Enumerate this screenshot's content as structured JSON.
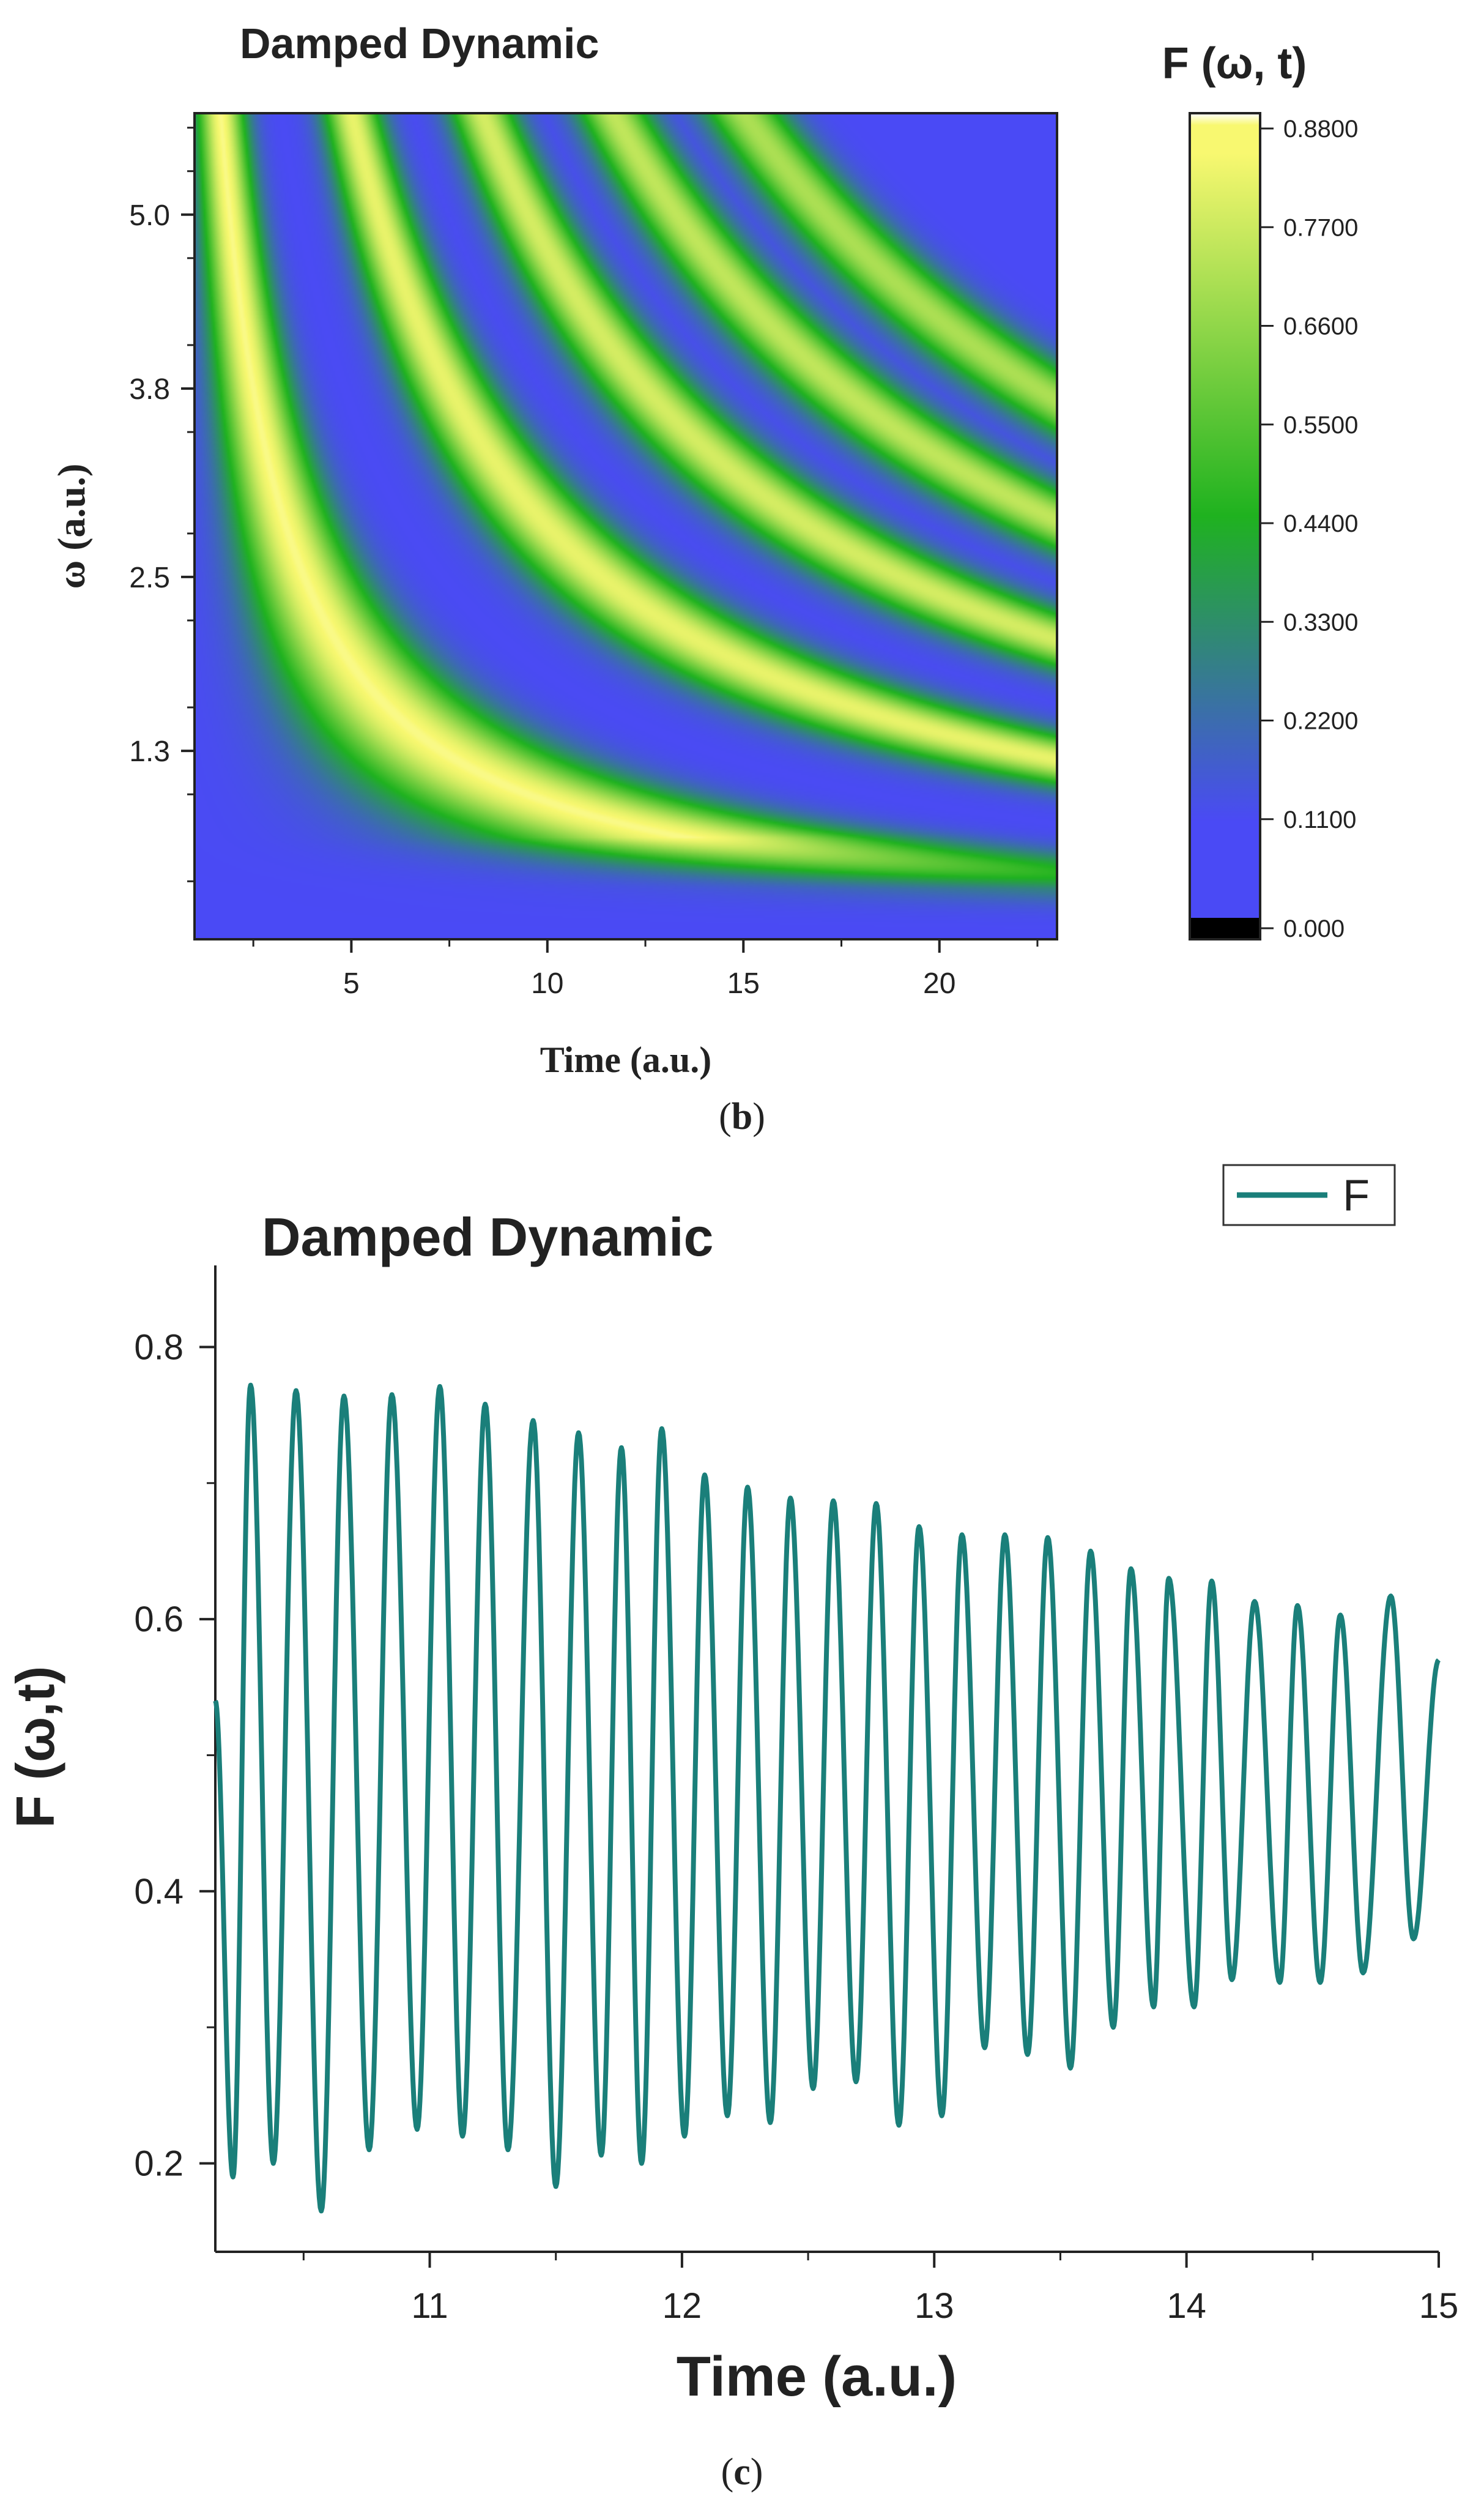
{
  "figure_b": {
    "caption_prefix": "(",
    "caption_letter": "b",
    "caption_suffix": ")"
  },
  "figure_c": {
    "caption_prefix": "(",
    "caption_letter": "c",
    "caption_suffix": ")"
  },
  "colors": {
    "heat_low": "#4a4af5",
    "heat_mid": "#1fb21f",
    "heat_high": "#f8f870",
    "heat_zero": "#000000",
    "line": "#1a7f7a"
  },
  "chart_data": [
    {
      "type": "heatmap",
      "title": "Damped Dynamic",
      "xlabel": "Time (a.u.)",
      "ylabel": "ω (a.u.)",
      "xlim": [
        1.0,
        23.0
      ],
      "ylim": [
        0.0,
        5.7
      ],
      "x_ticks": [
        5,
        10,
        15,
        20
      ],
      "x_tick_labels": [
        "5",
        "10",
        "15",
        "20"
      ],
      "y_ticks": [
        1.3,
        2.5,
        3.8,
        5.0
      ],
      "y_tick_labels": [
        "1.3",
        "2.5",
        "3.8",
        "5.0"
      ],
      "z_label": "F (ω, t)",
      "z_range": [
        0.0,
        0.88
      ],
      "colorbar_ticks": [
        0.0,
        0.11,
        0.22,
        0.33,
        0.44,
        0.55,
        0.66,
        0.77,
        0.88
      ],
      "colorbar_tick_labels": [
        "0.000",
        "0.1100",
        "0.2200",
        "0.3300",
        "0.4400",
        "0.5500",
        "0.6600",
        "0.7700",
        "0.8800"
      ],
      "description_of_pattern": "bright hyperbolic ridges where omega*time ≈ 9.5, 28, 47, 66"
    },
    {
      "type": "line",
      "title": "Damped Dynamic",
      "xlabel": "Time (a.u.)",
      "ylabel": "F (ω,t)",
      "xlim": [
        10.15,
        15.0
      ],
      "ylim": [
        0.135,
        0.86
      ],
      "x_ticks": [
        11,
        12,
        13,
        14,
        15
      ],
      "x_tick_labels": [
        "11",
        "12",
        "13",
        "14",
        "15"
      ],
      "y_ticks": [
        0.2,
        0.4,
        0.6,
        0.8
      ],
      "y_tick_labels": [
        "0.2",
        "0.4",
        "0.6",
        "0.8"
      ],
      "legend": [
        "F"
      ],
      "legend_position": "top-right",
      "series": [
        {
          "name": "F",
          "peaks": [
            [
              10.29,
              0.772
            ],
            [
              10.47,
              0.768
            ],
            [
              10.66,
              0.764
            ],
            [
              10.85,
              0.765
            ],
            [
              11.04,
              0.771
            ],
            [
              11.22,
              0.758
            ],
            [
              11.41,
              0.746
            ],
            [
              11.59,
              0.737
            ],
            [
              11.76,
              0.726
            ],
            [
              11.92,
              0.74
            ],
            [
              12.09,
              0.706
            ],
            [
              12.26,
              0.697
            ],
            [
              12.43,
              0.689
            ],
            [
              12.6,
              0.687
            ],
            [
              12.77,
              0.685
            ],
            [
              12.94,
              0.668
            ],
            [
              13.11,
              0.662
            ],
            [
              13.28,
              0.662
            ],
            [
              13.45,
              0.66
            ],
            [
              13.62,
              0.65
            ],
            [
              13.78,
              0.637
            ],
            [
              13.93,
              0.63
            ],
            [
              14.1,
              0.628
            ],
            [
              14.27,
              0.613
            ],
            [
              14.44,
              0.61
            ],
            [
              14.61,
              0.603
            ],
            [
              14.81,
              0.617
            ]
          ],
          "troughs": [
            [
              10.22,
              0.19
            ],
            [
              10.38,
              0.2
            ],
            [
              10.57,
              0.165
            ],
            [
              10.76,
              0.21
            ],
            [
              10.95,
              0.225
            ],
            [
              11.13,
              0.22
            ],
            [
              11.31,
              0.21
            ],
            [
              11.5,
              0.183
            ],
            [
              11.68,
              0.206
            ],
            [
              11.84,
              0.2
            ],
            [
              12.01,
              0.22
            ],
            [
              12.18,
              0.235
            ],
            [
              12.35,
              0.23
            ],
            [
              12.52,
              0.255
            ],
            [
              12.69,
              0.26
            ],
            [
              12.86,
              0.228
            ],
            [
              13.03,
              0.235
            ],
            [
              13.2,
              0.285
            ],
            [
              13.37,
              0.28
            ],
            [
              13.54,
              0.27
            ],
            [
              13.71,
              0.3
            ],
            [
              13.87,
              0.315
            ],
            [
              14.03,
              0.315
            ],
            [
              14.18,
              0.335
            ],
            [
              14.37,
              0.333
            ],
            [
              14.53,
              0.333
            ],
            [
              14.7,
              0.34
            ],
            [
              14.9,
              0.365
            ]
          ],
          "start": [
            10.15,
            0.54
          ],
          "end": [
            15.0,
            0.57
          ]
        }
      ]
    }
  ]
}
